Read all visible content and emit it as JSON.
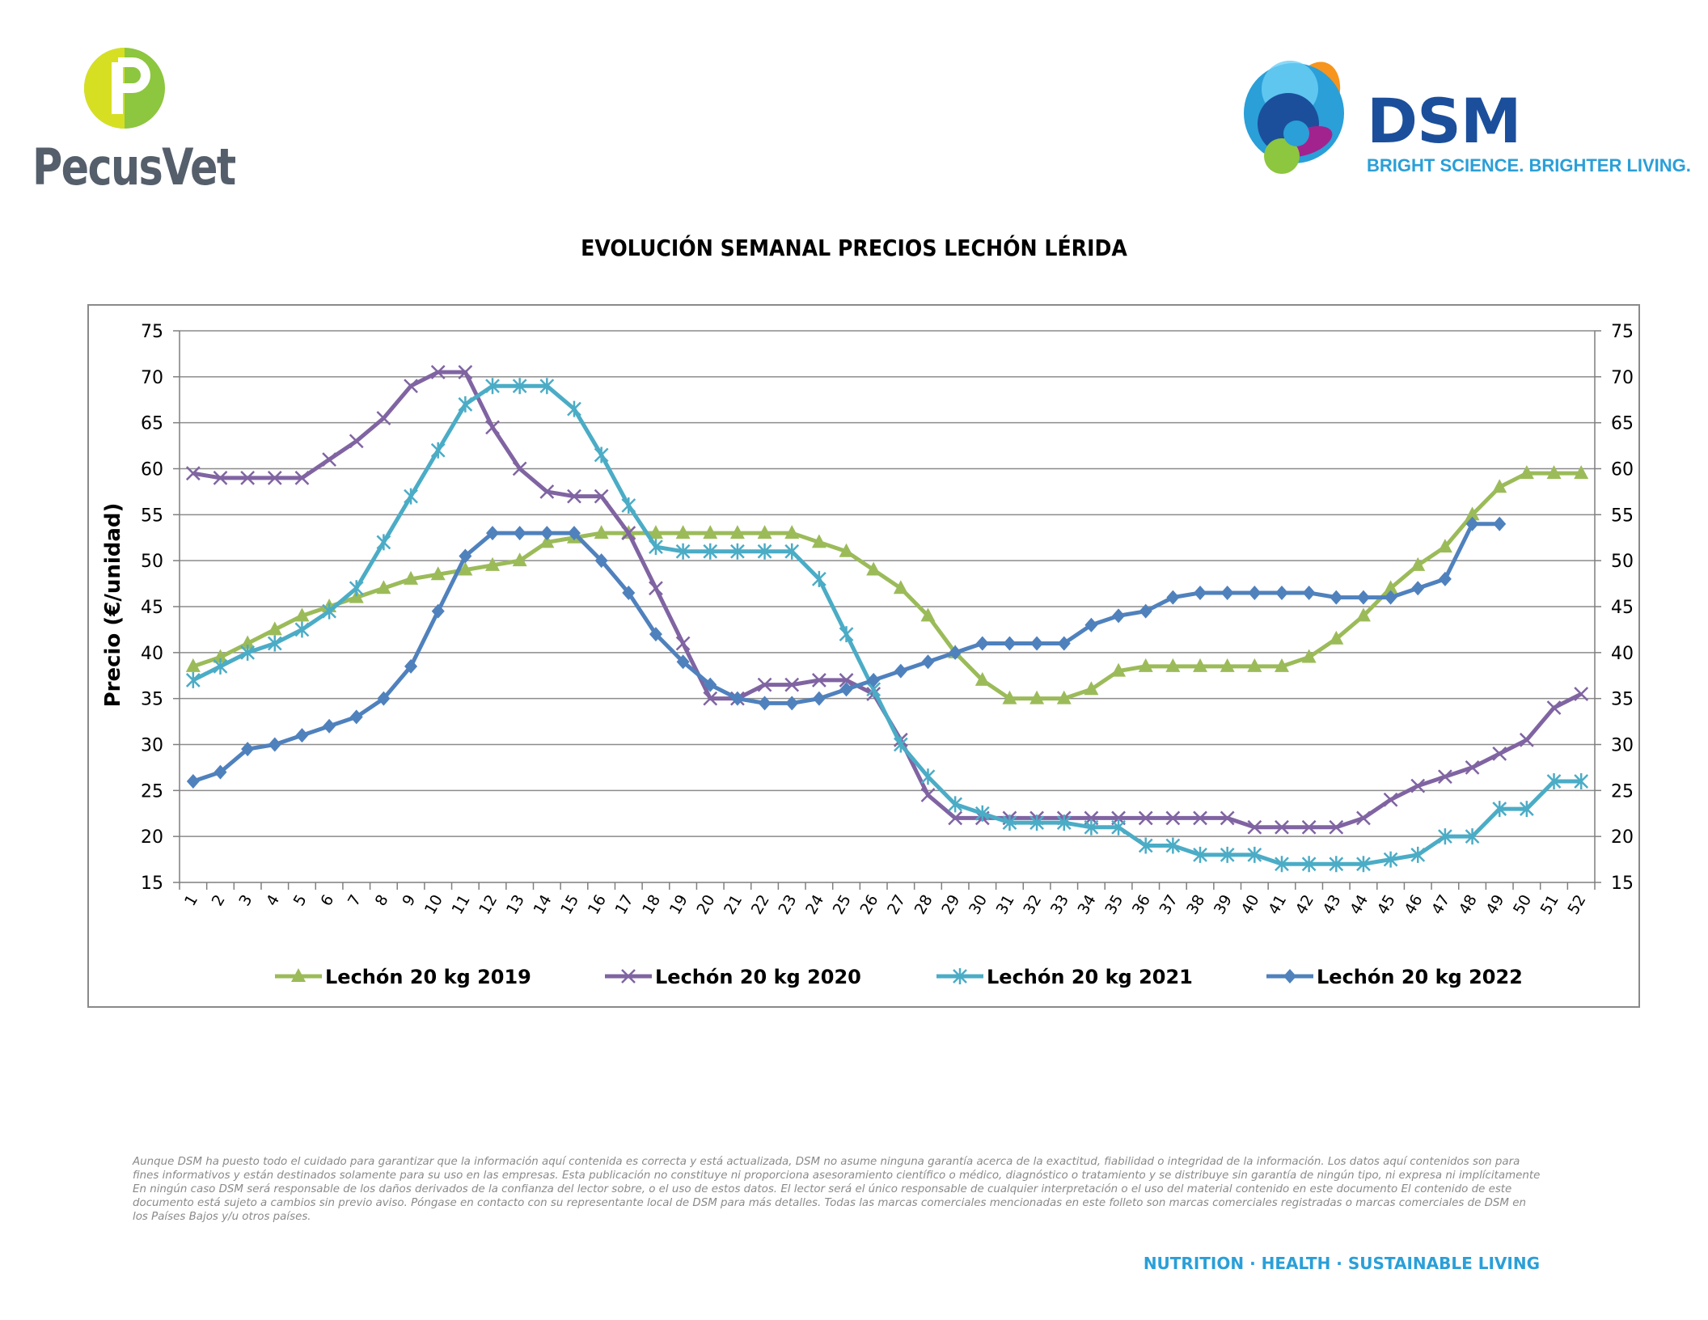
{
  "logos": {
    "pecusvet": "PecusVet",
    "dsm": "DSM",
    "dsm_tagline": "BRIGHT SCIENCE. BRIGHTER LIVING."
  },
  "chart_data": {
    "type": "line",
    "title": "EVOLUCIÓN SEMANAL PRECIOS LECHÓN LÉRIDA",
    "ylabel": "Precio (€/unidad)",
    "xlabel": "",
    "ylim": [
      15,
      75
    ],
    "yticks": [
      15,
      20,
      25,
      30,
      35,
      40,
      45,
      50,
      55,
      60,
      65,
      70,
      75
    ],
    "secondary_yaxis": true,
    "grid": true,
    "legend_position": "bottom",
    "categories": [
      "1",
      "2",
      "3",
      "4",
      "5",
      "6",
      "7",
      "8",
      "9",
      "10",
      "11",
      "12",
      "13",
      "14",
      "15",
      "16",
      "17",
      "18",
      "19",
      "20",
      "21",
      "22",
      "23",
      "24",
      "25",
      "26",
      "27",
      "28",
      "29",
      "30",
      "31",
      "32",
      "33",
      "34",
      "35",
      "36",
      "37",
      "38",
      "39",
      "40",
      "41",
      "42",
      "43",
      "44",
      "45",
      "46",
      "47",
      "48",
      "49",
      "50",
      "51",
      "52"
    ],
    "series": [
      {
        "name": "Lechón 20 kg 2019",
        "color": "#9bbb59",
        "marker": "triangle",
        "values": [
          38.5,
          39.5,
          41,
          42.5,
          44,
          45,
          46,
          47,
          48,
          48.5,
          49,
          49.5,
          50,
          52,
          52.5,
          53,
          53,
          53,
          53,
          53,
          53,
          53,
          53,
          52,
          51,
          49,
          47,
          44,
          40,
          37,
          35,
          35,
          35,
          36,
          38,
          38.5,
          38.5,
          38.5,
          38.5,
          38.5,
          38.5,
          39.5,
          41.5,
          44,
          47,
          49.5,
          51.5,
          55,
          58,
          59.5,
          59.5,
          59.5
        ]
      },
      {
        "name": "Lechón 20 kg 2020",
        "color": "#8064a2",
        "marker": "x",
        "values": [
          59.5,
          59,
          59,
          59,
          59,
          61,
          63,
          65.5,
          69,
          70.5,
          70.5,
          64.5,
          60,
          57.5,
          57,
          57,
          53,
          47,
          41,
          35,
          35,
          36.5,
          36.5,
          37,
          37,
          35.5,
          30.5,
          24.5,
          22,
          22,
          22,
          22,
          22,
          22,
          22,
          22,
          22,
          22,
          22,
          21,
          21,
          21,
          21,
          22,
          24,
          25.5,
          26.5,
          27.5,
          29,
          30.5,
          34,
          35.5
        ]
      },
      {
        "name": "Lechón 20 kg 2021",
        "color": "#4bacc6",
        "marker": "asterisk",
        "values": [
          37,
          38.5,
          40,
          41,
          42.5,
          44.5,
          47,
          52,
          57,
          62,
          67,
          69,
          69,
          69,
          66.5,
          61.5,
          56,
          51.5,
          51,
          51,
          51,
          51,
          51,
          48,
          42,
          36,
          30,
          26.5,
          23.5,
          22.5,
          21.5,
          21.5,
          21.5,
          21,
          21,
          19,
          19,
          18,
          18,
          18,
          17,
          17,
          17,
          17,
          17.5,
          18,
          20,
          20,
          23,
          23,
          26,
          26
        ]
      },
      {
        "name": "Lechón 20 kg 2022",
        "color": "#4f81bd",
        "marker": "diamond",
        "values": [
          26,
          27,
          29.5,
          30,
          31,
          32,
          33,
          35,
          38.5,
          44.5,
          50.5,
          53,
          53,
          53,
          53,
          50,
          46.5,
          42,
          39,
          36.5,
          35,
          34.5,
          34.5,
          35,
          36,
          37,
          38,
          39,
          40,
          41,
          41,
          41,
          41,
          43,
          44,
          44.5,
          46,
          46.5,
          46.5,
          46.5,
          46.5,
          46.5,
          46,
          46,
          46,
          47,
          48,
          54,
          54,
          null,
          null,
          null
        ]
      }
    ]
  },
  "disclaimer": "Aunque DSM ha puesto todo el cuidado para garantizar que la información aquí contenida es correcta y está actualizada, DSM no asume ninguna garantía acerca de la exactitud, fiabilidad o integridad de la información. Los datos aquí contenidos son para fines informativos y están destinados solamente para su uso en las empresas. Esta publicación no constituye ni proporciona asesoramiento científico o médico, diagnóstico o tratamiento y se distribuye sin garantía de ningún tipo, ni expresa ni implícitamente En ningún caso DSM será responsable de los daños derivados de la confianza del lector sobre, o el uso de estos datos. El lector será el único responsable de cualquier interpretación o el uso del material contenido en este documento El contenido de este documento está sujeto a cambios sin previo aviso. Póngase en contacto con su representante local de DSM para más detalles. Todas las marcas comerciales mencionadas en este folleto son marcas comerciales registradas o marcas comerciales de DSM en los Países Bajos y/u otros países.",
  "footer_tagline": "NUTRITION · HEALTH · SUSTAINABLE LIVING"
}
